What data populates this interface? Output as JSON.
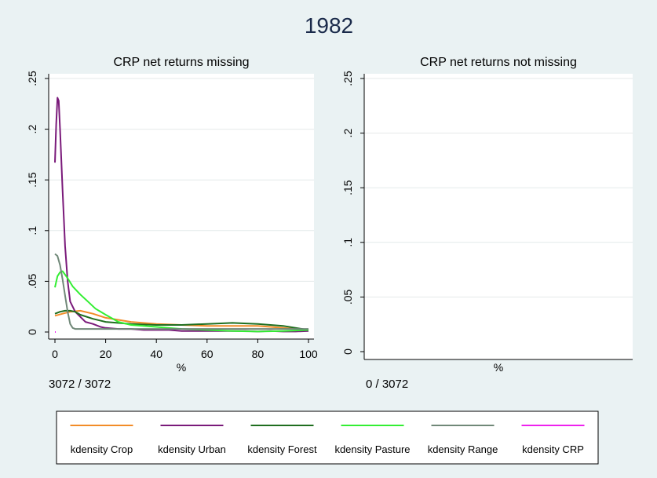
{
  "figure": {
    "title": "1982",
    "background": "#eaf2f3",
    "plot_background": "#ffffff"
  },
  "chart_data": [
    {
      "type": "line",
      "title": "CRP net returns missing",
      "xlabel": "%",
      "ylabel": "",
      "xlim": [
        0,
        100
      ],
      "ylim": [
        0,
        0.25
      ],
      "xticks": [
        "0",
        "20",
        "40",
        "60",
        "80",
        "100"
      ],
      "yticks": [
        "0",
        ".05",
        ".1",
        ".15",
        ".2",
        ".25"
      ],
      "grid": true,
      "note": "3072 / 3072",
      "series": [
        {
          "name": "kdensity Crop",
          "color": "#f28c28",
          "x": [
            0,
            3,
            6,
            10,
            15,
            20,
            30,
            40,
            50,
            60,
            70,
            80,
            90,
            100
          ],
          "y": [
            0.016,
            0.018,
            0.02,
            0.021,
            0.018,
            0.014,
            0.01,
            0.008,
            0.007,
            0.006,
            0.006,
            0.006,
            0.004,
            0.002
          ]
        },
        {
          "name": "kdensity Urban",
          "color": "#7a1a7a",
          "x": [
            0,
            0.5,
            1,
            1.5,
            2,
            3,
            4,
            5,
            6,
            8,
            10,
            12,
            15,
            18,
            20,
            25,
            30,
            35,
            40,
            45,
            50,
            55,
            60,
            65,
            70,
            75,
            80,
            85,
            90,
            95,
            100
          ],
          "y": [
            0.167,
            0.205,
            0.231,
            0.228,
            0.2,
            0.14,
            0.085,
            0.05,
            0.03,
            0.02,
            0.015,
            0.01,
            0.008,
            0.005,
            0.004,
            0.003,
            0.003,
            0.002,
            0.002,
            0.002,
            0.001,
            0.001,
            0.001,
            0.001,
            0.001,
            0.001,
            0.0005,
            0.001,
            0.0005,
            0.0005,
            0.001
          ]
        },
        {
          "name": "kdensity Forest",
          "color": "#1f6e1f",
          "x": [
            0,
            2,
            4,
            6,
            8,
            10,
            15,
            20,
            30,
            40,
            50,
            60,
            70,
            80,
            90,
            100
          ],
          "y": [
            0.018,
            0.02,
            0.021,
            0.021,
            0.02,
            0.017,
            0.013,
            0.01,
            0.008,
            0.007,
            0.007,
            0.008,
            0.009,
            0.008,
            0.006,
            0.002
          ]
        },
        {
          "name": "kdensity Pasture",
          "color": "#33ee33",
          "x": [
            0,
            1,
            2,
            3,
            5,
            7,
            10,
            13,
            16,
            20,
            25,
            30,
            40,
            50,
            60,
            70,
            80,
            90,
            100
          ],
          "y": [
            0.044,
            0.055,
            0.059,
            0.06,
            0.053,
            0.045,
            0.037,
            0.03,
            0.023,
            0.017,
            0.01,
            0.007,
            0.005,
            0.003,
            0.002,
            0.001,
            0.0005,
            0.001,
            0.002
          ]
        },
        {
          "name": "kdensity Range",
          "color": "#708878",
          "x": [
            0,
            1,
            2,
            3,
            4,
            5,
            6,
            7,
            8,
            10,
            20,
            40,
            60,
            80,
            100
          ],
          "y": [
            0.077,
            0.075,
            0.066,
            0.052,
            0.036,
            0.02,
            0.008,
            0.004,
            0.003,
            0.003,
            0.003,
            0.003,
            0.003,
            0.003,
            0.003
          ]
        },
        {
          "name": "kdensity CRP",
          "color": "#ee22ee",
          "x": [
            0,
            0.3
          ],
          "y": [
            0,
            0
          ]
        }
      ]
    },
    {
      "type": "line",
      "title": "CRP net returns not missing",
      "xlabel": "%",
      "ylabel": "",
      "ylim": [
        0,
        0.25
      ],
      "yticks": [
        "0",
        ".05",
        ".1",
        ".15",
        ".2",
        ".25"
      ],
      "grid": true,
      "note": "0 / 3072",
      "series": []
    }
  ],
  "legend": {
    "placement": "bottom",
    "items": [
      {
        "label": "kdensity Crop",
        "color": "#f28c28"
      },
      {
        "label": "kdensity Urban",
        "color": "#7a1a7a"
      },
      {
        "label": "kdensity Forest",
        "color": "#1f6e1f"
      },
      {
        "label": "kdensity Pasture",
        "color": "#33ee33"
      },
      {
        "label": "kdensity Range",
        "color": "#708878"
      },
      {
        "label": "kdensity CRP",
        "color": "#ee22ee"
      }
    ]
  }
}
